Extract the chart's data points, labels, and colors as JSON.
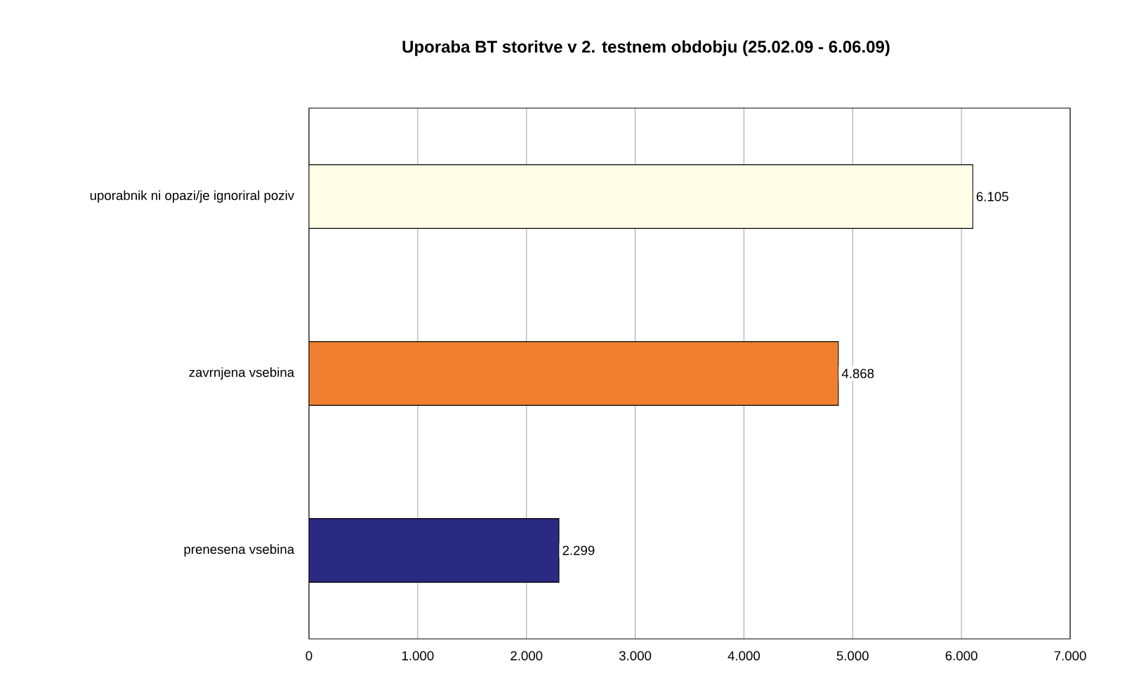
{
  "chart_data": {
    "type": "bar",
    "orientation": "horizontal",
    "title": "Uporaba BT storitve v 2. testnem obdobju (25.02.09 - 6.06.09)",
    "categories": [
      "uporabnik ni opazi/je ignoriral poziv",
      "zavrnjena vsebina",
      "prenesena vsebina"
    ],
    "values": [
      6105,
      4868,
      2299
    ],
    "value_labels": [
      "6.105",
      "4.868",
      "2.299"
    ],
    "colors": [
      "#fffde6",
      "#f08030",
      "#2b2a82"
    ],
    "xlim": [
      0,
      7000
    ],
    "xticks": [
      {
        "value": 0,
        "label": "0"
      },
      {
        "value": 1000,
        "label": "1.000"
      },
      {
        "value": 2000,
        "label": "2.000"
      },
      {
        "value": 3000,
        "label": "3.000"
      },
      {
        "value": 4000,
        "label": "4.000"
      },
      {
        "value": 5000,
        "label": "5.000"
      },
      {
        "value": 6000,
        "label": "6.000"
      },
      {
        "value": 7000,
        "label": "7.000"
      }
    ],
    "grid": "x"
  }
}
